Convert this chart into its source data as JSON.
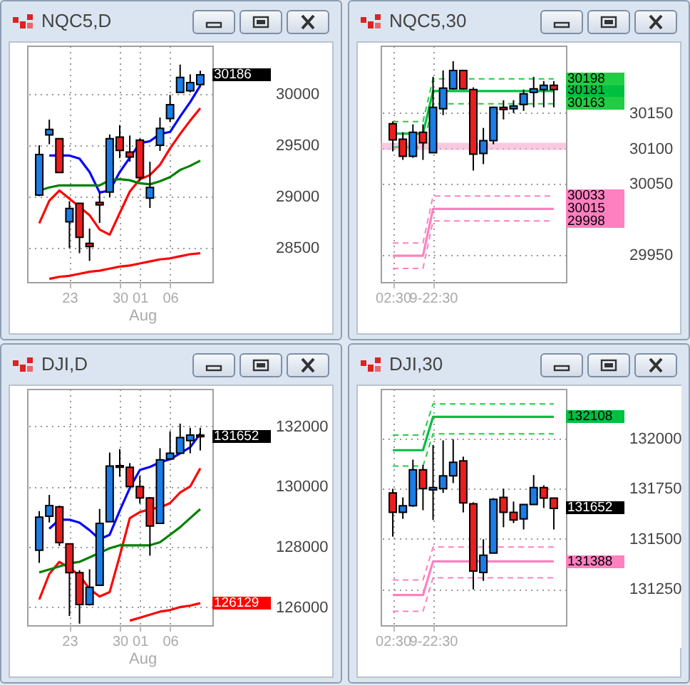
{
  "chart_data": [
    {
      "type": "candlestick",
      "title": "NQC5,D",
      "categories": [
        null,
        null,
        null,
        "23",
        null,
        null,
        null,
        null,
        "30",
        null,
        "01",
        null,
        null,
        "06",
        null,
        null,
        null
      ],
      "ohlc": [
        [
          29015,
          29500,
          29005,
          29410
        ],
        [
          29600,
          29750,
          29510,
          29655
        ],
        [
          29565,
          29565,
          29235,
          29235
        ],
        [
          28755,
          28955,
          28500,
          28885
        ],
        [
          28935,
          28940,
          28450,
          28605
        ],
        [
          28545,
          28690,
          28375,
          28515
        ],
        [
          28945,
          29040,
          28745,
          28920
        ],
        [
          29045,
          29605,
          28995,
          29565
        ],
        [
          29580,
          29695,
          29375,
          29450
        ],
        [
          29435,
          29595,
          29340,
          29385
        ],
        [
          29550,
          29565,
          29150,
          29185
        ],
        [
          28985,
          29340,
          28890,
          29090
        ],
        [
          29500,
          29770,
          29445,
          29665
        ],
        [
          29760,
          29990,
          29725,
          29895
        ],
        [
          30015,
          30285,
          30015,
          30160
        ],
        [
          30030,
          30190,
          30015,
          30110
        ],
        [
          30090,
          30225,
          30075,
          30186
        ]
      ],
      "series": [
        {
          "type": "line",
          "color": "#0000ff",
          "values": [
            null,
            29400,
            29400,
            29400,
            29370,
            29240,
            29040,
            29060,
            29240,
            29380,
            29520,
            29540,
            29610,
            29630,
            29780,
            29920,
            30080
          ]
        },
        {
          "type": "line",
          "color": "#ff0000",
          "values": [
            28740,
            28960,
            29060,
            28980,
            28900,
            28820,
            28680,
            28630,
            28840,
            29050,
            29170,
            29210,
            29310,
            29470,
            29610,
            29740,
            29860
          ]
        },
        {
          "type": "line",
          "color": "#008000",
          "values": [
            29060,
            29090,
            29110,
            29110,
            29110,
            29110,
            29110,
            29160,
            29170,
            29160,
            29130,
            29120,
            29150,
            29190,
            29260,
            29300,
            29350
          ]
        },
        {
          "type": "line",
          "color": "#ff0000",
          "values": [
            null,
            28200,
            28220,
            28230,
            28250,
            28270,
            28280,
            28300,
            28320,
            28330,
            28350,
            28370,
            28390,
            28400,
            28420,
            28440,
            28450
          ]
        }
      ],
      "ylim": [
        28170,
        30470
      ],
      "yticks": [
        28500,
        29000,
        29500,
        30000
      ],
      "grid": true,
      "annotations": [
        "30186",
        "Aug"
      ]
    },
    {
      "type": "candlestick",
      "title": "NQC5,30",
      "categories": [
        "02:30",
        null,
        null,
        null,
        "9-22:30",
        null,
        null,
        null,
        null,
        null,
        null,
        null,
        null,
        null,
        null,
        null,
        null
      ],
      "ohlc": [
        [
          30135,
          30138,
          30096,
          30112
        ],
        [
          30113,
          30123,
          30084,
          30089
        ],
        [
          30089,
          30134,
          30087,
          30123
        ],
        [
          30123,
          30134,
          30084,
          30108
        ],
        [
          30094,
          30201,
          30094,
          30158
        ],
        [
          30156,
          30210,
          30147,
          30185
        ],
        [
          30184,
          30223,
          30183,
          30210
        ],
        [
          30210,
          30210,
          30183,
          30184
        ],
        [
          30183,
          30186,
          30069,
          30092
        ],
        [
          30093,
          30129,
          30078,
          30111
        ],
        [
          30111,
          30159,
          30106,
          30158
        ],
        [
          30158,
          30168,
          30141,
          30155
        ],
        [
          30156,
          30168,
          30150,
          30160
        ],
        [
          30162,
          30183,
          30153,
          30177
        ],
        [
          30179,
          30201,
          30158,
          30184
        ],
        [
          30183,
          30195,
          30158,
          30189
        ],
        [
          30189,
          30195,
          30158,
          30183
        ]
      ],
      "series": [
        {
          "type": "line",
          "color": "#00c040",
          "values": [
            30121,
            30121,
            30121,
            30121,
            30181,
            30181,
            30181,
            30181,
            30181,
            30181,
            30181,
            30181,
            30181,
            30181,
            30181,
            30181,
            30181
          ],
          "value_labels": [
            null,
            null,
            null,
            null,
            null,
            null,
            null,
            null,
            null,
            null,
            null,
            null,
            null,
            null,
            null,
            null,
            "30181"
          ]
        },
        {
          "type": "line",
          "color": "#22cc44",
          "line_style": "dashed",
          "values": [
            30138,
            30138,
            30138,
            30138,
            30198,
            30198,
            30198,
            30198,
            30198,
            30198,
            30198,
            30198,
            30198,
            30198,
            30198,
            30198,
            30198
          ],
          "value_labels": [
            null,
            null,
            null,
            null,
            null,
            null,
            null,
            null,
            null,
            null,
            null,
            null,
            null,
            null,
            null,
            null,
            "30198"
          ]
        },
        {
          "type": "line",
          "color": "#22cc44",
          "line_style": "dashed",
          "values": [
            30102,
            30102,
            30102,
            30102,
            30163,
            30163,
            30163,
            30163,
            30163,
            30163,
            30163,
            30163,
            30163,
            30163,
            30163,
            30163,
            30163
          ],
          "value_labels": [
            null,
            null,
            null,
            null,
            null,
            null,
            null,
            null,
            null,
            null,
            null,
            null,
            null,
            null,
            null,
            null,
            "30163"
          ]
        },
        {
          "type": "line",
          "color": "#ff80c0",
          "values": [
            29949,
            29949,
            29949,
            29949,
            30015,
            30015,
            30015,
            30015,
            30015,
            30015,
            30015,
            30015,
            30015,
            30015,
            30015,
            30015,
            30015
          ],
          "value_labels": [
            null,
            null,
            null,
            null,
            null,
            null,
            null,
            null,
            null,
            null,
            null,
            null,
            null,
            null,
            null,
            null,
            "30015"
          ]
        },
        {
          "type": "line",
          "color": "#ff80c0",
          "line_style": "dashed",
          "values": [
            29967,
            29967,
            29967,
            29967,
            30033,
            30033,
            30033,
            30033,
            30033,
            30033,
            30033,
            30033,
            30033,
            30033,
            30033,
            30033,
            30033
          ],
          "value_labels": [
            null,
            null,
            null,
            null,
            null,
            null,
            null,
            null,
            null,
            null,
            null,
            null,
            null,
            null,
            null,
            null,
            "30033"
          ]
        },
        {
          "type": "line",
          "color": "#ff80c0",
          "line_style": "dashed",
          "values": [
            29931,
            29931,
            29931,
            29931,
            29998,
            29998,
            29998,
            29998,
            29998,
            29998,
            29998,
            29998,
            29998,
            29998,
            29998,
            29998,
            29998
          ],
          "value_labels": [
            null,
            null,
            null,
            null,
            null,
            null,
            null,
            null,
            null,
            null,
            null,
            null,
            null,
            null,
            null,
            null,
            "29998"
          ]
        }
      ],
      "ylim": [
        29912,
        30245
      ],
      "yticks": [
        29950,
        30050,
        30100,
        30150
      ],
      "grid": true,
      "ref_lines": [
        {
          "axis": "y",
          "value": 30103,
          "color": "#f4a6cc"
        }
      ]
    },
    {
      "type": "candlestick",
      "title": "DJI,D",
      "categories": [
        null,
        null,
        null,
        "23",
        null,
        null,
        null,
        null,
        "30",
        null,
        "01",
        null,
        null,
        "06",
        null,
        null,
        null
      ],
      "ohlc": [
        [
          127885,
          129185,
          127465,
          128985
        ],
        [
          129015,
          129720,
          128805,
          129365
        ],
        [
          129325,
          129365,
          128030,
          128140
        ],
        [
          128100,
          128100,
          125705,
          127140
        ],
        [
          127140,
          127225,
          125450,
          126085
        ],
        [
          126085,
          127255,
          126055,
          126660
        ],
        [
          126720,
          129255,
          126720,
          128775
        ],
        [
          128830,
          131125,
          128830,
          130675
        ],
        [
          130690,
          131240,
          130325,
          130635
        ],
        [
          130635,
          130775,
          130000,
          130000
        ],
        [
          130000,
          130350,
          129435,
          129620
        ],
        [
          129620,
          129650,
          127705,
          128690
        ],
        [
          128775,
          131270,
          128775,
          130885
        ],
        [
          130915,
          131830,
          130915,
          131100
        ],
        [
          131100,
          132085,
          131100,
          131620
        ],
        [
          131520,
          131945,
          131100,
          131705
        ],
        [
          131705,
          131945,
          131195,
          131652
        ]
      ],
      "series": [
        {
          "type": "line",
          "color": "#0000ff",
          "values": [
            null,
            128600,
            128900,
            128900,
            128800,
            128550,
            128250,
            128400,
            129200,
            129950,
            130550,
            130650,
            130800,
            130900,
            131100,
            131300,
            131750
          ]
        },
        {
          "type": "line",
          "color": "#ff0000",
          "values": [
            126250,
            127100,
            127500,
            127300,
            127050,
            126600,
            126350,
            126500,
            127700,
            128950,
            129150,
            129250,
            129300,
            129450,
            129800,
            130000,
            130600
          ]
        },
        {
          "type": "line",
          "color": "#008000",
          "values": [
            127150,
            127250,
            127350,
            127450,
            127500,
            127650,
            127800,
            127950,
            128050,
            128050,
            128050,
            128050,
            128150,
            128400,
            128650,
            128950,
            129250
          ]
        },
        {
          "type": "line",
          "color": "#ff0000",
          "values": [
            null,
            null,
            null,
            null,
            null,
            null,
            null,
            null,
            null,
            125550,
            125650,
            125750,
            125850,
            125900,
            126000,
            126050,
            126129
          ],
          "value_labels": [
            null,
            null,
            null,
            null,
            null,
            null,
            null,
            null,
            null,
            null,
            null,
            null,
            null,
            null,
            null,
            null,
            "126129"
          ]
        }
      ],
      "ylim": [
        125400,
        133240
      ],
      "yticks": [
        126000,
        128000,
        130000,
        132000
      ],
      "grid": true,
      "annotations": [
        "131652",
        "Aug"
      ]
    },
    {
      "type": "candlestick",
      "title": "DJI,30",
      "categories": [
        "02:30",
        null,
        null,
        null,
        "9-22:30",
        null,
        null,
        null,
        null,
        null,
        null,
        null,
        null,
        null,
        null,
        null,
        null
      ],
      "ohlc": [
        [
          131729,
          131750,
          131511,
          131632
        ],
        [
          131632,
          131707,
          131600,
          131665
        ],
        [
          131665,
          131895,
          131660,
          131844
        ],
        [
          131844,
          131868,
          131643,
          131750
        ],
        [
          131744,
          131968,
          131594,
          131756
        ],
        [
          131750,
          131991,
          131729,
          131814
        ],
        [
          131814,
          131996,
          131778,
          131882
        ],
        [
          131889,
          131910,
          131632,
          131679
        ],
        [
          131675,
          131682,
          131248,
          131340
        ],
        [
          131333,
          131498,
          131291,
          131419
        ],
        [
          131429,
          131703,
          131429,
          131697
        ],
        [
          131707,
          131750,
          131558,
          131632
        ],
        [
          131632,
          131686,
          131579,
          131594
        ],
        [
          131600,
          131671,
          131547,
          131671
        ],
        [
          131671,
          131818,
          131671,
          131756
        ],
        [
          131756,
          131767,
          131654,
          131703
        ],
        [
          131703,
          131703,
          131547,
          131652
        ]
      ],
      "series": [
        {
          "type": "line",
          "color": "#00c040",
          "values": [
            131942,
            131942,
            131942,
            131942,
            132108,
            132108,
            132108,
            132108,
            132108,
            132108,
            132108,
            132108,
            132108,
            132108,
            132108,
            132108,
            132108
          ],
          "value_labels": [
            null,
            null,
            null,
            null,
            null,
            null,
            null,
            null,
            null,
            null,
            null,
            null,
            null,
            null,
            null,
            null,
            "132108"
          ]
        },
        {
          "type": "line",
          "color": "#22cc44",
          "line_style": "dashed",
          "values": [
            132017,
            132017,
            132017,
            132017,
            132173,
            132173,
            132173,
            132173,
            132173,
            132173,
            132173,
            132173,
            132173,
            132173,
            132173,
            132173,
            132173
          ]
        },
        {
          "type": "line",
          "color": "#22cc44",
          "line_style": "dashed",
          "values": [
            131863,
            131863,
            131863,
            131863,
            132024,
            132024,
            132024,
            132024,
            132024,
            132024,
            132024,
            132024,
            132024,
            132024,
            132024,
            132024,
            132024
          ]
        },
        {
          "type": "line",
          "color": "#ff80c0",
          "values": [
            131220,
            131220,
            131220,
            131220,
            131388,
            131388,
            131388,
            131388,
            131388,
            131388,
            131388,
            131388,
            131388,
            131388,
            131388,
            131388,
            131388
          ],
          "value_labels": [
            null,
            null,
            null,
            null,
            null,
            null,
            null,
            null,
            null,
            null,
            null,
            null,
            null,
            null,
            null,
            null,
            "131388"
          ]
        },
        {
          "type": "line",
          "color": "#ff80c0",
          "line_style": "dashed",
          "values": [
            131295,
            131295,
            131295,
            131295,
            131459,
            131459,
            131459,
            131459,
            131459,
            131459,
            131459,
            131459,
            131459,
            131459,
            131459,
            131459,
            131459
          ]
        },
        {
          "type": "line",
          "color": "#ff80c0",
          "line_style": "dashed",
          "values": [
            131139,
            131139,
            131139,
            131139,
            131306,
            131306,
            131306,
            131306,
            131306,
            131306,
            131306,
            131306,
            131306,
            131306,
            131306,
            131306,
            131306
          ]
        }
      ],
      "ylim": [
        131070,
        132248
      ],
      "yticks": [
        131250,
        131500,
        131750,
        132000
      ],
      "grid": true,
      "annotations": [
        "131652"
      ]
    }
  ]
}
